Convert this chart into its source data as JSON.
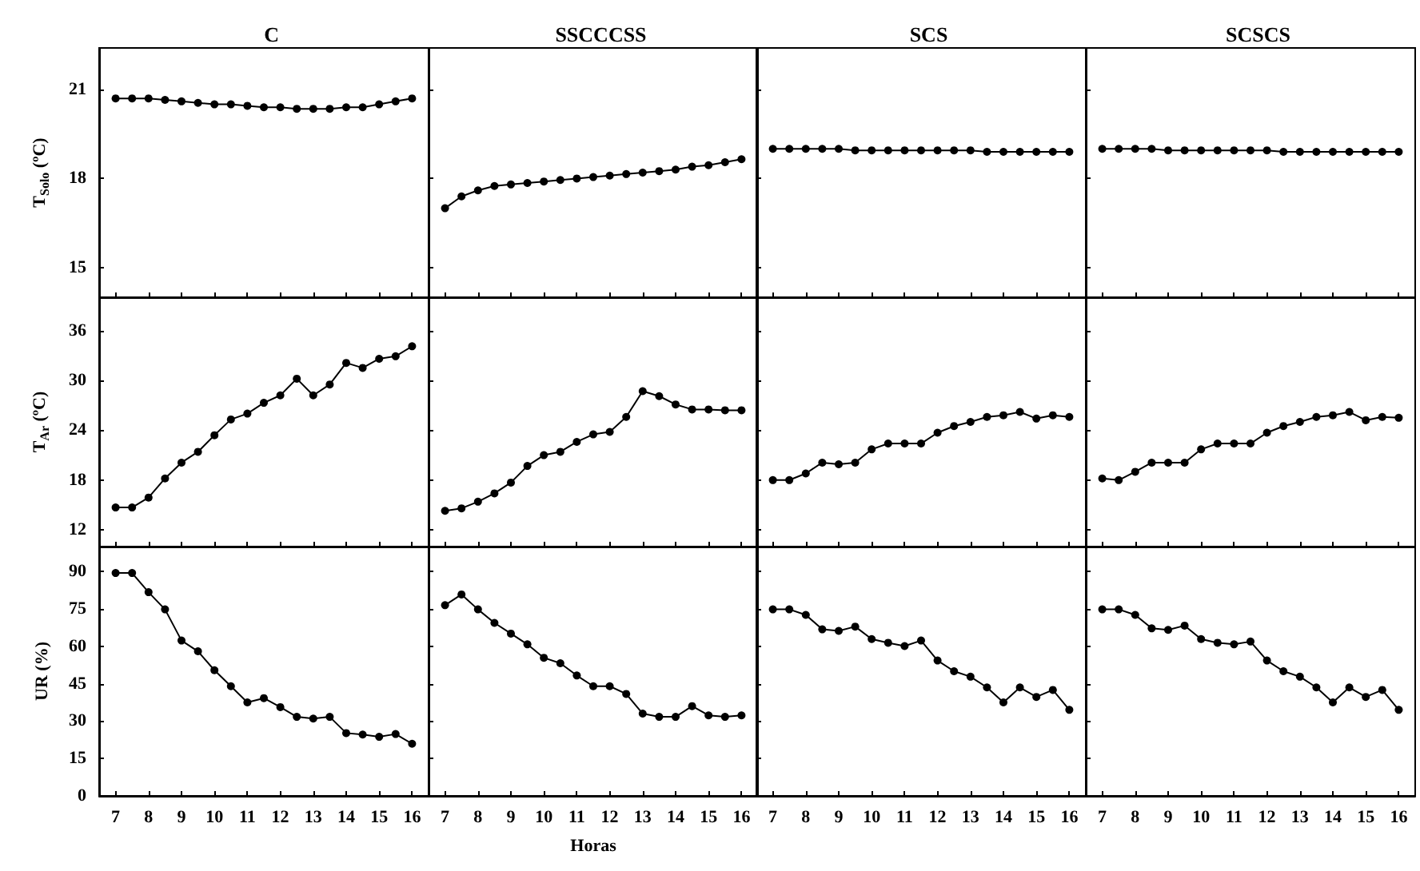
{
  "chart_data": [
    {
      "type": "line",
      "title": "C",
      "ylabel": "T$_{Solo}$ (ºC)",
      "x": [
        7,
        7.5,
        8,
        8.5,
        9,
        9.5,
        10,
        10.5,
        11,
        11.5,
        12,
        12.5,
        13,
        13.5,
        14,
        14.5,
        15,
        15.5,
        16
      ],
      "xlim": [
        6.5,
        16.5
      ],
      "xticks": [
        7,
        8,
        9,
        10,
        11,
        12,
        13,
        14,
        15,
        16
      ],
      "ylim": [
        14,
        22.4
      ],
      "yticks": [
        15,
        18,
        21
      ],
      "tick_labels": "y",
      "marker": "circle",
      "line_style": "solid",
      "series": [
        {
          "color": "#000000",
          "values": [
            20.7,
            20.7,
            20.7,
            20.65,
            20.6,
            20.55,
            20.5,
            20.5,
            20.45,
            20.4,
            20.4,
            20.35,
            20.35,
            20.35,
            20.4,
            20.4,
            20.5,
            20.6,
            20.7
          ]
        }
      ]
    },
    {
      "type": "line",
      "title": "SSCCCSS",
      "x": [
        7,
        7.5,
        8,
        8.5,
        9,
        9.5,
        10,
        10.5,
        11,
        11.5,
        12,
        12.5,
        13,
        13.5,
        14,
        14.5,
        15,
        15.5,
        16
      ],
      "xlim": [
        6.5,
        16.5
      ],
      "xticks": [
        7,
        8,
        9,
        10,
        11,
        12,
        13,
        14,
        15,
        16
      ],
      "ylim": [
        14,
        22.4
      ],
      "yticks": [
        15,
        18,
        21
      ],
      "tick_labels": false,
      "marker": "circle",
      "line_style": "solid",
      "series": [
        {
          "color": "#000000",
          "values": [
            17.0,
            17.4,
            17.6,
            17.75,
            17.8,
            17.85,
            17.9,
            17.95,
            18.0,
            18.05,
            18.1,
            18.15,
            18.2,
            18.25,
            18.3,
            18.4,
            18.45,
            18.55,
            18.65
          ]
        }
      ]
    },
    {
      "type": "line",
      "title": "SCS",
      "x": [
        7,
        7.5,
        8,
        8.5,
        9,
        9.5,
        10,
        10.5,
        11,
        11.5,
        12,
        12.5,
        13,
        13.5,
        14,
        14.5,
        15,
        15.5,
        16
      ],
      "xlim": [
        6.5,
        16.5
      ],
      "xticks": [
        7,
        8,
        9,
        10,
        11,
        12,
        13,
        14,
        15,
        16
      ],
      "ylim": [
        14,
        22.4
      ],
      "yticks": [
        15,
        18,
        21
      ],
      "tick_labels": false,
      "marker": "circle",
      "line_style": "solid",
      "series": [
        {
          "color": "#000000",
          "values": [
            19.0,
            19.0,
            19.0,
            19.0,
            19.0,
            18.95,
            18.95,
            18.95,
            18.95,
            18.95,
            18.95,
            18.95,
            18.95,
            18.9,
            18.9,
            18.9,
            18.9,
            18.9,
            18.9
          ]
        }
      ]
    },
    {
      "type": "line",
      "title": "SCSCS",
      "x": [
        7,
        7.5,
        8,
        8.5,
        9,
        9.5,
        10,
        10.5,
        11,
        11.5,
        12,
        12.5,
        13,
        13.5,
        14,
        14.5,
        15,
        15.5,
        16
      ],
      "xlim": [
        6.5,
        16.5
      ],
      "xticks": [
        7,
        8,
        9,
        10,
        11,
        12,
        13,
        14,
        15,
        16
      ],
      "ylim": [
        14,
        22.4
      ],
      "yticks": [
        15,
        18,
        21
      ],
      "tick_labels": false,
      "marker": "circle",
      "line_style": "solid",
      "series": [
        {
          "color": "#000000",
          "values": [
            19.0,
            19.0,
            19.0,
            19.0,
            18.95,
            18.95,
            18.95,
            18.95,
            18.95,
            18.95,
            18.95,
            18.9,
            18.9,
            18.9,
            18.9,
            18.9,
            18.9,
            18.9,
            18.9
          ]
        }
      ]
    },
    {
      "type": "line",
      "ylabel": "T$_{Ar}$ (ºC)",
      "x": [
        7,
        7.5,
        8,
        8.5,
        9,
        9.5,
        10,
        10.5,
        11,
        11.5,
        12,
        12.5,
        13,
        13.5,
        14,
        14.5,
        15,
        15.5,
        16
      ],
      "xlim": [
        6.5,
        16.5
      ],
      "xticks": [
        7,
        8,
        9,
        10,
        11,
        12,
        13,
        14,
        15,
        16
      ],
      "ylim": [
        10,
        40
      ],
      "yticks": [
        12,
        18,
        24,
        30,
        36
      ],
      "tick_labels": "y",
      "marker": "circle",
      "line_style": "solid",
      "series": [
        {
          "color": "#000000",
          "values": [
            14.7,
            14.7,
            15.9,
            18.2,
            20.1,
            21.4,
            23.4,
            25.3,
            26.0,
            27.3,
            28.2,
            30.2,
            28.2,
            29.5,
            32.1,
            31.5,
            32.6,
            32.9,
            34.1
          ]
        }
      ]
    },
    {
      "type": "line",
      "x": [
        7,
        7.5,
        8,
        8.5,
        9,
        9.5,
        10,
        10.5,
        11,
        11.5,
        12,
        12.5,
        13,
        13.5,
        14,
        14.5,
        15,
        15.5,
        16
      ],
      "xlim": [
        6.5,
        16.5
      ],
      "xticks": [
        7,
        8,
        9,
        10,
        11,
        12,
        13,
        14,
        15,
        16
      ],
      "ylim": [
        10,
        40
      ],
      "yticks": [
        12,
        18,
        24,
        30,
        36
      ],
      "tick_labels": false,
      "marker": "circle",
      "line_style": "solid",
      "series": [
        {
          "color": "#000000",
          "values": [
            14.3,
            14.6,
            15.4,
            16.4,
            17.7,
            19.7,
            21.0,
            21.4,
            22.6,
            23.5,
            23.8,
            25.6,
            28.7,
            28.1,
            27.1,
            26.5,
            26.5,
            26.4,
            26.4
          ]
        }
      ]
    },
    {
      "type": "line",
      "x": [
        7,
        7.5,
        8,
        8.5,
        9,
        9.5,
        10,
        10.5,
        11,
        11.5,
        12,
        12.5,
        13,
        13.5,
        14,
        14.5,
        15,
        15.5,
        16
      ],
      "xlim": [
        6.5,
        16.5
      ],
      "xticks": [
        7,
        8,
        9,
        10,
        11,
        12,
        13,
        14,
        15,
        16
      ],
      "ylim": [
        10,
        40
      ],
      "yticks": [
        12,
        18,
        24,
        30,
        36
      ],
      "tick_labels": false,
      "marker": "circle",
      "line_style": "solid",
      "series": [
        {
          "color": "#000000",
          "values": [
            18.0,
            18.0,
            18.8,
            20.1,
            19.9,
            20.1,
            21.7,
            22.4,
            22.4,
            22.4,
            23.7,
            24.5,
            25.0,
            25.6,
            25.8,
            26.2,
            25.4,
            25.8,
            25.6
          ]
        }
      ]
    },
    {
      "type": "line",
      "x": [
        7,
        7.5,
        8,
        8.5,
        9,
        9.5,
        10,
        10.5,
        11,
        11.5,
        12,
        12.5,
        13,
        13.5,
        14,
        14.5,
        15,
        15.5,
        16
      ],
      "xlim": [
        6.5,
        16.5
      ],
      "xticks": [
        7,
        8,
        9,
        10,
        11,
        12,
        13,
        14,
        15,
        16
      ],
      "ylim": [
        10,
        40
      ],
      "yticks": [
        12,
        18,
        24,
        30,
        36
      ],
      "tick_labels": false,
      "marker": "circle",
      "line_style": "solid",
      "series": [
        {
          "color": "#000000",
          "values": [
            18.2,
            18.0,
            19.0,
            20.1,
            20.1,
            20.1,
            21.7,
            22.4,
            22.4,
            22.4,
            23.7,
            24.5,
            25.0,
            25.6,
            25.8,
            26.2,
            25.2,
            25.6,
            25.5
          ]
        }
      ]
    },
    {
      "type": "line",
      "ylabel": "UR (%)",
      "x": [
        7,
        7.5,
        8,
        8.5,
        9,
        9.5,
        10,
        10.5,
        11,
        11.5,
        12,
        12.5,
        13,
        13.5,
        14,
        14.5,
        15,
        15.5,
        16
      ],
      "xlim": [
        6.5,
        16.5
      ],
      "xticks": [
        7,
        8,
        9,
        10,
        11,
        12,
        13,
        14,
        15,
        16
      ],
      "ylim": [
        0,
        100
      ],
      "yticks": [
        0,
        15,
        30,
        45,
        60,
        75,
        90
      ],
      "marker": "circle",
      "line_style": "solid",
      "series": [
        {
          "color": "#000000",
          "values": [
            89.4,
            89.4,
            81.7,
            74.8,
            62.3,
            58.0,
            50.4,
            44.0,
            37.5,
            39.2,
            35.6,
            31.7,
            31.0,
            31.7,
            25.2,
            24.6,
            23.7,
            24.8,
            20.9
          ]
        }
      ]
    },
    {
      "type": "line",
      "xlabel": "Horas",
      "x": [
        7,
        7.5,
        8,
        8.5,
        9,
        9.5,
        10,
        10.5,
        11,
        11.5,
        12,
        12.5,
        13,
        13.5,
        14,
        14.5,
        15,
        15.5,
        16
      ],
      "xlim": [
        6.5,
        16.5
      ],
      "xticks": [
        7,
        8,
        9,
        10,
        11,
        12,
        13,
        14,
        15,
        16
      ],
      "ylim": [
        0,
        100
      ],
      "yticks": [
        0,
        15,
        30,
        45,
        60,
        75,
        90
      ],
      "tick_labels": "x",
      "marker": "circle",
      "line_style": "solid",
      "series": [
        {
          "color": "#000000",
          "values": [
            76.5,
            80.8,
            74.8,
            69.4,
            65.1,
            60.8,
            55.4,
            53.2,
            48.3,
            44.0,
            44.0,
            40.9,
            33.0,
            31.7,
            31.7,
            36.0,
            32.3,
            31.7,
            32.3
          ]
        }
      ]
    },
    {
      "type": "line",
      "x": [
        7,
        7.5,
        8,
        8.5,
        9,
        9.5,
        10,
        10.5,
        11,
        11.5,
        12,
        12.5,
        13,
        13.5,
        14,
        14.5,
        15,
        15.5,
        16
      ],
      "xlim": [
        6.5,
        16.5
      ],
      "xticks": [
        7,
        8,
        9,
        10,
        11,
        12,
        13,
        14,
        15,
        16
      ],
      "ylim": [
        0,
        100
      ],
      "yticks": [
        0,
        15,
        30,
        45,
        60,
        75,
        90
      ],
      "tick_labels": "x",
      "marker": "circle",
      "line_style": "solid",
      "series": [
        {
          "color": "#000000",
          "values": [
            74.8,
            74.8,
            72.6,
            66.8,
            66.2,
            67.9,
            62.9,
            61.4,
            60.1,
            62.3,
            54.3,
            50.0,
            47.8,
            43.5,
            37.5,
            43.5,
            39.7,
            42.5,
            34.5
          ]
        }
      ]
    },
    {
      "type": "line",
      "x": [
        7,
        7.5,
        8,
        8.5,
        9,
        9.5,
        10,
        10.5,
        11,
        11.5,
        12,
        12.5,
        13,
        13.5,
        14,
        14.5,
        15,
        15.5,
        16
      ],
      "xlim": [
        6.5,
        16.5
      ],
      "xticks": [
        7,
        8,
        9,
        10,
        11,
        12,
        13,
        14,
        15,
        16
      ],
      "ylim": [
        0,
        100
      ],
      "yticks": [
        0,
        15,
        30,
        45,
        60,
        75,
        90
      ],
      "tick_labels": "x",
      "marker": "circle",
      "line_style": "solid",
      "series": [
        {
          "color": "#000000",
          "values": [
            74.8,
            74.8,
            72.6,
            67.2,
            66.6,
            68.3,
            62.9,
            61.4,
            60.8,
            61.9,
            54.3,
            50.0,
            47.8,
            43.5,
            37.5,
            43.5,
            39.7,
            42.5,
            34.5
          ]
        }
      ]
    }
  ]
}
